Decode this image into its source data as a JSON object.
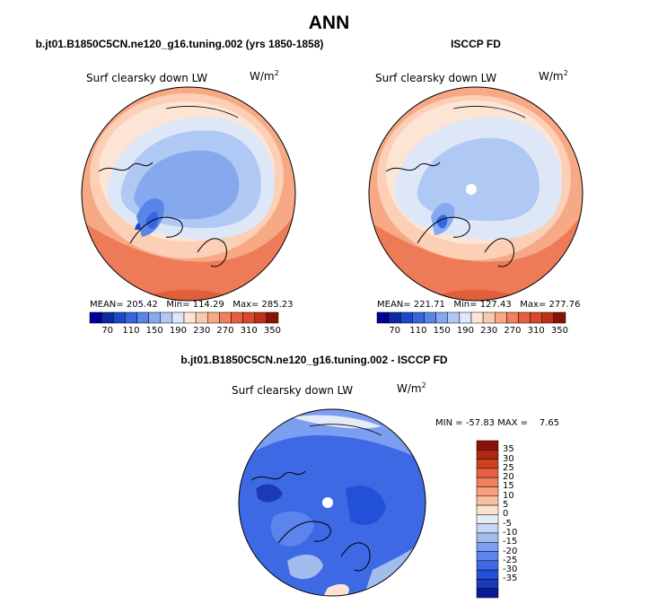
{
  "season": "ANN",
  "panels": [
    {
      "caption": "b.jt01.B1850C5CN.ne120_g16.tuning.002 (yrs 1850-1858)",
      "variable": "Surf clearsky down LW",
      "units_base": "W/m",
      "units_exp": "2",
      "stats": {
        "mean_label": "MEAN=",
        "mean": "205.42",
        "min_label": "Min=",
        "min": "114.29",
        "max_label": "Max=",
        "max": "285.23"
      }
    },
    {
      "caption": "ISCCP FD",
      "variable": "Surf clearsky down LW",
      "units_base": "W/m",
      "units_exp": "2",
      "stats": {
        "mean_label": "MEAN=",
        "mean": "221.71",
        "min_label": "Min=",
        "min": "127.43",
        "max_label": "Max=",
        "max": "277.76"
      }
    }
  ],
  "diff": {
    "caption": "b.jt01.B1850C5CN.ne120_g16.tuning.002 - ISCCP FD",
    "variable": "Surf clearsky down LW",
    "units_base": "W/m",
    "units_exp": "2",
    "stats": {
      "min_label": "MIN =",
      "min": "-57.83",
      "max_label": "MAX =",
      "max": "7.65"
    }
  },
  "colorbar_main": {
    "colors": [
      "#000099",
      "#0d2ba0",
      "#1a48c9",
      "#3366e0",
      "#5a85e8",
      "#85a8ee",
      "#b0c8f4",
      "#dde7f8",
      "#fde5d5",
      "#fbcaae",
      "#f7a885",
      "#f08060",
      "#e5603e",
      "#d84a2a",
      "#c03018",
      "#8a1208"
    ],
    "tick_labels": [
      "70",
      "110",
      "150",
      "190",
      "230",
      "270",
      "310",
      "350"
    ]
  },
  "colorbar_diff": {
    "colors": [
      "#8a1208",
      "#b02814",
      "#d04020",
      "#e86040",
      "#f08060",
      "#f6a07e",
      "#f9c0a0",
      "#fde2d0",
      "#e4ecf8",
      "#c6d6f2",
      "#a2bcee",
      "#7c9ef0",
      "#5b84ec",
      "#3d6ae4",
      "#2350d8",
      "#1a3ab6",
      "#0a1a96"
    ],
    "tick_labels": [
      "35",
      "30",
      "25",
      "20",
      "15",
      "10",
      "5",
      "0",
      "-5",
      "-10",
      "-15",
      "-20",
      "-25",
      "-30",
      "-35"
    ]
  }
}
